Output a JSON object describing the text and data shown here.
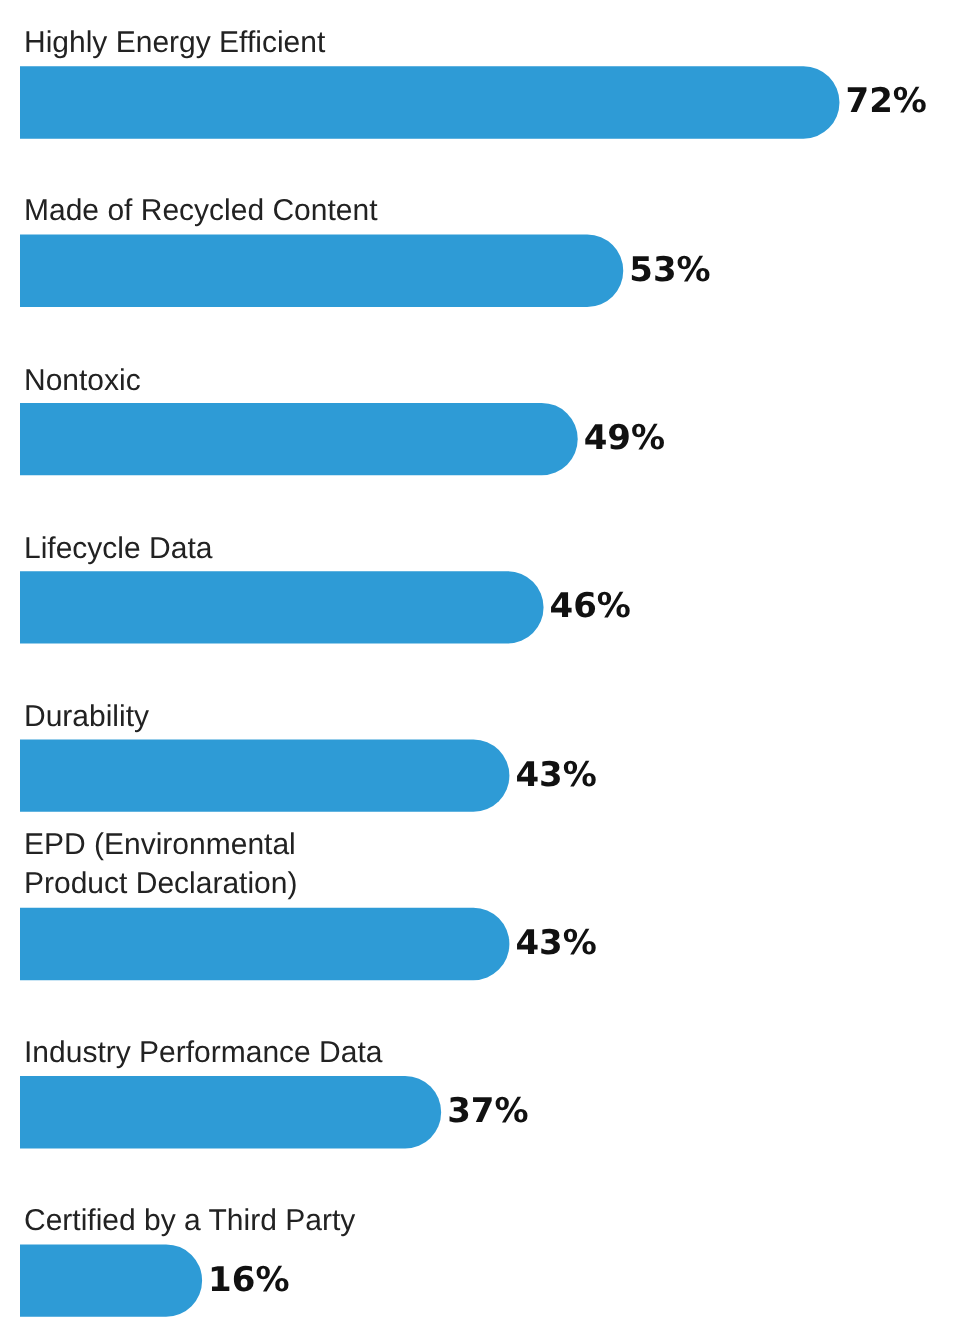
{
  "chart_data": {
    "type": "bar",
    "orientation": "horizontal",
    "categories": [
      "Highly Energy Efficient",
      "Made of Recycled Content",
      "Nontoxic",
      "Lifecycle Data",
      "Durability",
      "EPD (Environmental Product Declaration)",
      "Industry Performance Data",
      "Certified by a Third Party"
    ],
    "values": [
      72,
      53,
      49,
      46,
      43,
      43,
      37,
      16
    ],
    "value_labels": [
      "72%",
      "53%",
      "49%",
      "46%",
      "43%",
      "43%",
      "37%",
      "16%"
    ],
    "color": "#2e9bd6",
    "grid": false
  }
}
